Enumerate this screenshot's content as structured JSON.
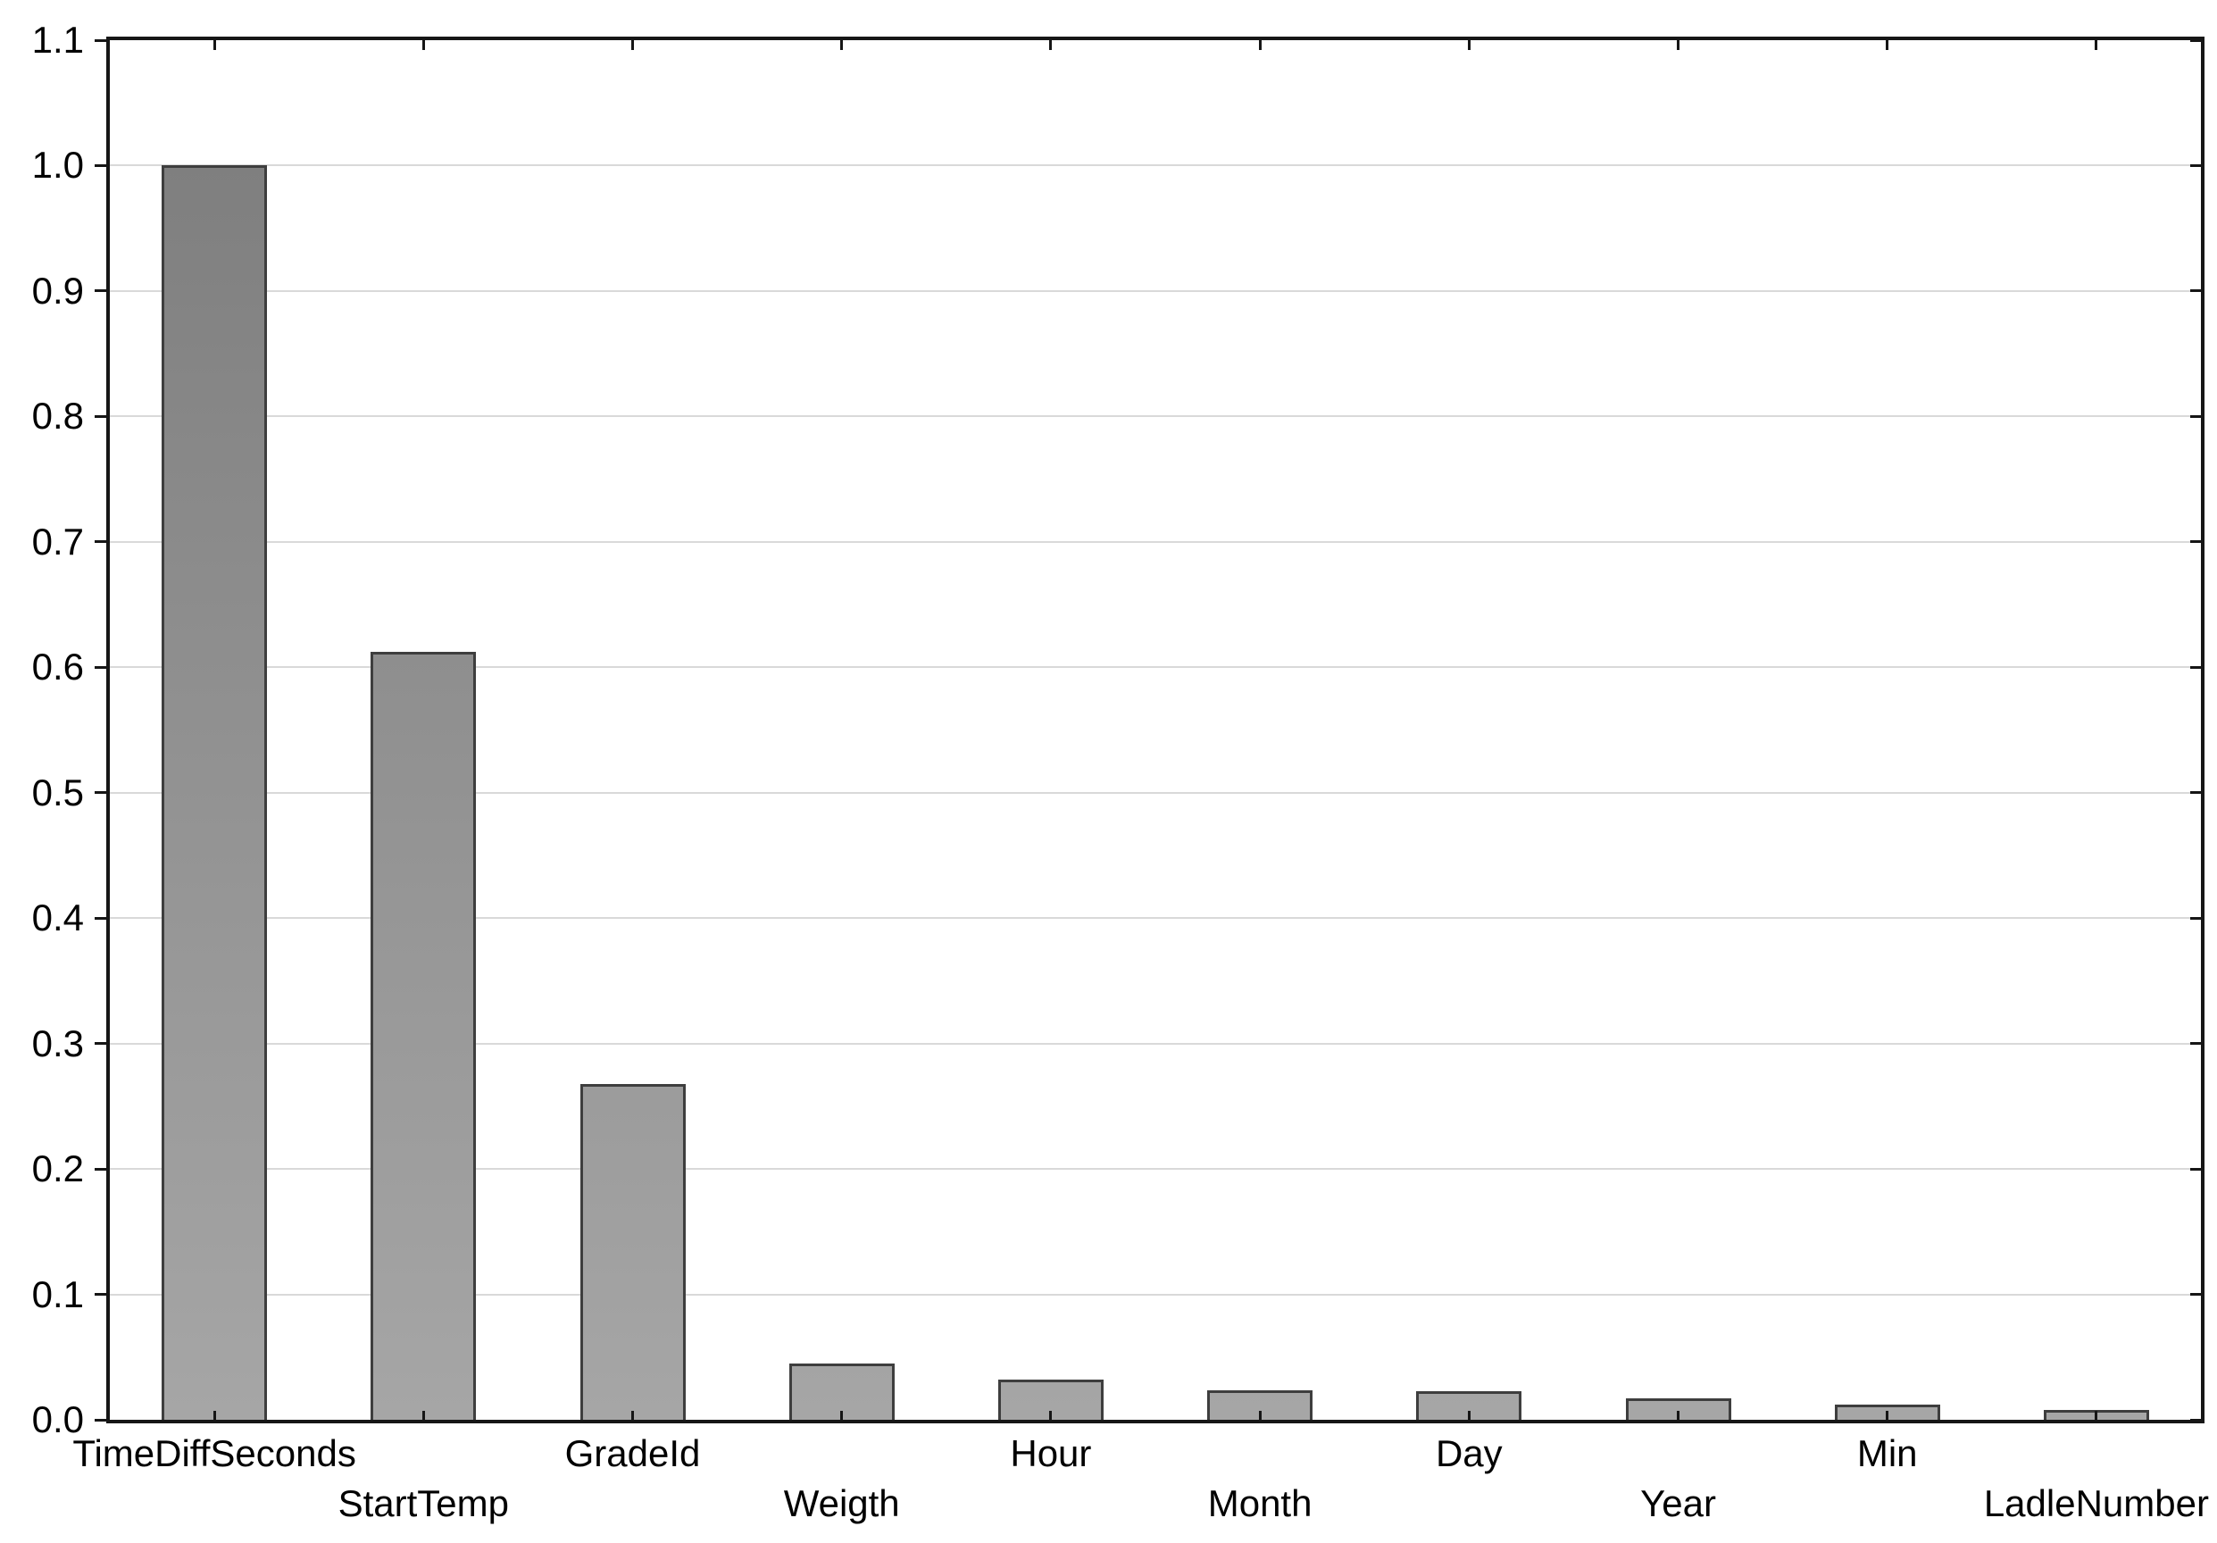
{
  "chart_data": {
    "type": "bar",
    "title": "",
    "xlabel": "",
    "ylabel": "",
    "categories": [
      "TimeDiffSeconds",
      "StartTemp",
      "GradeId",
      "Weigth",
      "Hour",
      "Month",
      "Day",
      "Year",
      "Min",
      "LadleNumber"
    ],
    "values": [
      1.0,
      0.612,
      0.268,
      0.045,
      0.032,
      0.0235,
      0.0225,
      0.017,
      0.012,
      0.008
    ],
    "ylim": [
      0.0,
      1.1
    ],
    "y_ticks": [
      0.0,
      0.1,
      0.2,
      0.3,
      0.4,
      0.5,
      0.6,
      0.7,
      0.8,
      0.9,
      1.0,
      1.1
    ],
    "y_tick_labels": [
      "0.0",
      "0.1",
      "0.2",
      "0.3",
      "0.4",
      "0.5",
      "0.6",
      "0.7",
      "0.8",
      "0.9",
      "1.0",
      "1.1"
    ],
    "grid": "horizontal",
    "legend": "none",
    "x_label_layout": "staggered-two-rows",
    "colors": {
      "bar_fill_bottom": "#a6a6a6",
      "bar_fill_top": "#7f7f7f",
      "bar_border": "#3e3e3e",
      "gridline": "#d9d9d9",
      "frame": "#161616",
      "text": "#000000",
      "background": "#ffffff"
    }
  }
}
